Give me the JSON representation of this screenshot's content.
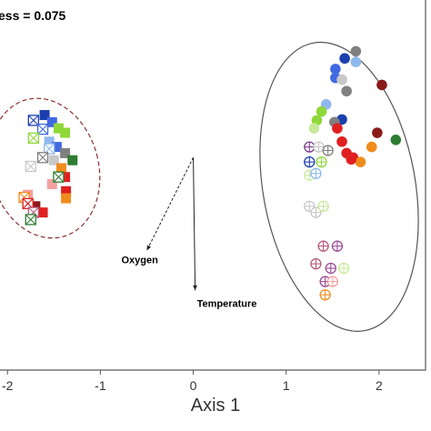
{
  "chart_data": {
    "type": "scatter",
    "title": "",
    "annotation": "ess = 0.075",
    "xlabel": "Axis 1",
    "ylabel": "",
    "xlim": [
      -2.1,
      2.5
    ],
    "ylim": [
      -2.4,
      1.8
    ],
    "x_ticks": [
      "-2",
      "-1",
      "0",
      "1",
      "2"
    ],
    "x_tick_values": [
      -2,
      -1,
      0,
      1,
      2
    ],
    "grid": false,
    "legend": "none",
    "colors": {
      "dark_blue": "#1c3fae",
      "blue": "#4169e1",
      "light_blue": "#8fb8ee",
      "gray": "#808080",
      "light_gray": "#c8c8c8",
      "dark_green": "#2e7d32",
      "green": "#8fd83a",
      "light_green": "#c8e89a",
      "red": "#e02020",
      "dark_red": "#8b1a1a",
      "orange": "#f08c1e",
      "pink": "#f4a0a0",
      "dark_gray": "#606060",
      "violet": "#9a4a9a",
      "mauve": "#b35a7a",
      "purple": "#7b3f8c"
    },
    "series": [
      {
        "marker": "filled-square",
        "points": [
          {
            "x": -1.6,
            "y": 0.48,
            "color": "dark_blue"
          },
          {
            "x": -1.52,
            "y": 0.4,
            "color": "blue"
          },
          {
            "x": -1.45,
            "y": 0.33,
            "color": "green"
          },
          {
            "x": -1.38,
            "y": 0.28,
            "color": "green"
          },
          {
            "x": -1.55,
            "y": 0.18,
            "color": "light_blue"
          },
          {
            "x": -1.47,
            "y": 0.12,
            "color": "blue"
          },
          {
            "x": -1.38,
            "y": 0.05,
            "color": "gray"
          },
          {
            "x": -1.5,
            "y": -0.03,
            "color": "light_gray"
          },
          {
            "x": -1.3,
            "y": -0.03,
            "color": "dark_green"
          },
          {
            "x": -1.42,
            "y": -0.12,
            "color": "orange"
          },
          {
            "x": -1.38,
            "y": -0.22,
            "color": "red"
          },
          {
            "x": -1.52,
            "y": -0.3,
            "color": "pink"
          },
          {
            "x": -1.37,
            "y": -0.38,
            "color": "red"
          },
          {
            "x": -1.37,
            "y": -0.46,
            "color": "orange"
          },
          {
            "x": -1.7,
            "y": -0.55,
            "color": "dark_red"
          },
          {
            "x": -1.62,
            "y": -0.62,
            "color": "red"
          },
          {
            "x": -1.78,
            "y": -0.42,
            "color": "pink"
          }
        ]
      },
      {
        "marker": "crossed-square",
        "points": [
          {
            "x": -1.72,
            "y": 0.42,
            "color": "dark_blue"
          },
          {
            "x": -1.62,
            "y": 0.32,
            "color": "blue"
          },
          {
            "x": -1.72,
            "y": 0.22,
            "color": "green"
          },
          {
            "x": -1.55,
            "y": 0.1,
            "color": "light_blue"
          },
          {
            "x": -1.62,
            "y": 0.0,
            "color": "gray"
          },
          {
            "x": -1.75,
            "y": -0.1,
            "color": "light_gray"
          },
          {
            "x": -1.45,
            "y": -0.22,
            "color": "dark_green"
          },
          {
            "x": -1.82,
            "y": -0.45,
            "color": "orange"
          },
          {
            "x": -1.78,
            "y": -0.52,
            "color": "red"
          },
          {
            "x": -1.72,
            "y": -0.62,
            "color": "mauve"
          },
          {
            "x": -1.75,
            "y": -0.7,
            "color": "dark_green"
          }
        ]
      },
      {
        "marker": "filled-circle",
        "points": [
          {
            "x": 1.75,
            "y": 1.2,
            "color": "gray"
          },
          {
            "x": 1.63,
            "y": 1.12,
            "color": "dark_blue"
          },
          {
            "x": 1.75,
            "y": 1.08,
            "color": "light_blue"
          },
          {
            "x": 1.53,
            "y": 1.0,
            "color": "blue"
          },
          {
            "x": 1.53,
            "y": 0.9,
            "color": "blue"
          },
          {
            "x": 1.6,
            "y": 0.88,
            "color": "light_gray"
          },
          {
            "x": 2.03,
            "y": 0.82,
            "color": "dark_red"
          },
          {
            "x": 1.65,
            "y": 0.75,
            "color": "gray"
          },
          {
            "x": 1.43,
            "y": 0.6,
            "color": "light_blue"
          },
          {
            "x": 1.38,
            "y": 0.52,
            "color": "green"
          },
          {
            "x": 1.6,
            "y": 0.43,
            "color": "dark_blue"
          },
          {
            "x": 1.33,
            "y": 0.42,
            "color": "green"
          },
          {
            "x": 1.52,
            "y": 0.4,
            "color": "gray"
          },
          {
            "x": 1.3,
            "y": 0.33,
            "color": "light_green"
          },
          {
            "x": 1.55,
            "y": 0.33,
            "color": "red"
          },
          {
            "x": 1.98,
            "y": 0.28,
            "color": "dark_red"
          },
          {
            "x": 1.6,
            "y": 0.18,
            "color": "red"
          },
          {
            "x": 2.18,
            "y": 0.2,
            "color": "dark_green"
          },
          {
            "x": 1.92,
            "y": 0.12,
            "color": "orange"
          },
          {
            "x": 1.65,
            "y": 0.05,
            "color": "red"
          },
          {
            "x": 1.72,
            "y": 0.0,
            "color": "red"
          },
          {
            "x": 1.8,
            "y": -0.05,
            "color": "orange"
          },
          {
            "x": 1.7,
            "y": -0.02,
            "color": "red"
          }
        ]
      },
      {
        "marker": "crossed-circle",
        "points": [
          {
            "x": 1.25,
            "y": 0.12,
            "color": "purple"
          },
          {
            "x": 1.35,
            "y": 0.12,
            "color": "light_gray"
          },
          {
            "x": 1.45,
            "y": 0.08,
            "color": "gray"
          },
          {
            "x": 1.25,
            "y": -0.05,
            "color": "dark_blue"
          },
          {
            "x": 1.38,
            "y": -0.05,
            "color": "green"
          },
          {
            "x": 1.25,
            "y": -0.2,
            "color": "light_green"
          },
          {
            "x": 1.32,
            "y": -0.18,
            "color": "light_blue"
          },
          {
            "x": 1.25,
            "y": -0.55,
            "color": "light_gray"
          },
          {
            "x": 1.32,
            "y": -0.62,
            "color": "light_gray"
          },
          {
            "x": 1.4,
            "y": -0.55,
            "color": "light_green"
          },
          {
            "x": 1.4,
            "y": -1.0,
            "color": "mauve"
          },
          {
            "x": 1.55,
            "y": -1.0,
            "color": "violet"
          },
          {
            "x": 1.32,
            "y": -1.2,
            "color": "mauve"
          },
          {
            "x": 1.48,
            "y": -1.25,
            "color": "violet"
          },
          {
            "x": 1.62,
            "y": -1.25,
            "color": "light_green"
          },
          {
            "x": 1.42,
            "y": -1.4,
            "color": "violet"
          },
          {
            "x": 1.5,
            "y": -1.4,
            "color": "pink"
          },
          {
            "x": 1.42,
            "y": -1.55,
            "color": "orange"
          }
        ]
      }
    ],
    "ellipses": [
      {
        "cx": -1.6,
        "cy": -0.12,
        "rx": 0.58,
        "ry": 0.8,
        "angle": -15,
        "color": "#8b3030",
        "style": "dashed"
      },
      {
        "cx": 1.57,
        "cy": -0.33,
        "rx": 0.82,
        "ry": 1.65,
        "angle": -10,
        "color": "#555555",
        "style": "solid"
      }
    ],
    "vectors": [
      {
        "label": "Oxygen",
        "x": -0.5,
        "y": -1.05,
        "style": "dashed"
      },
      {
        "label": "Temperature",
        "x": 0.02,
        "y": -1.5,
        "style": "solid"
      }
    ]
  }
}
